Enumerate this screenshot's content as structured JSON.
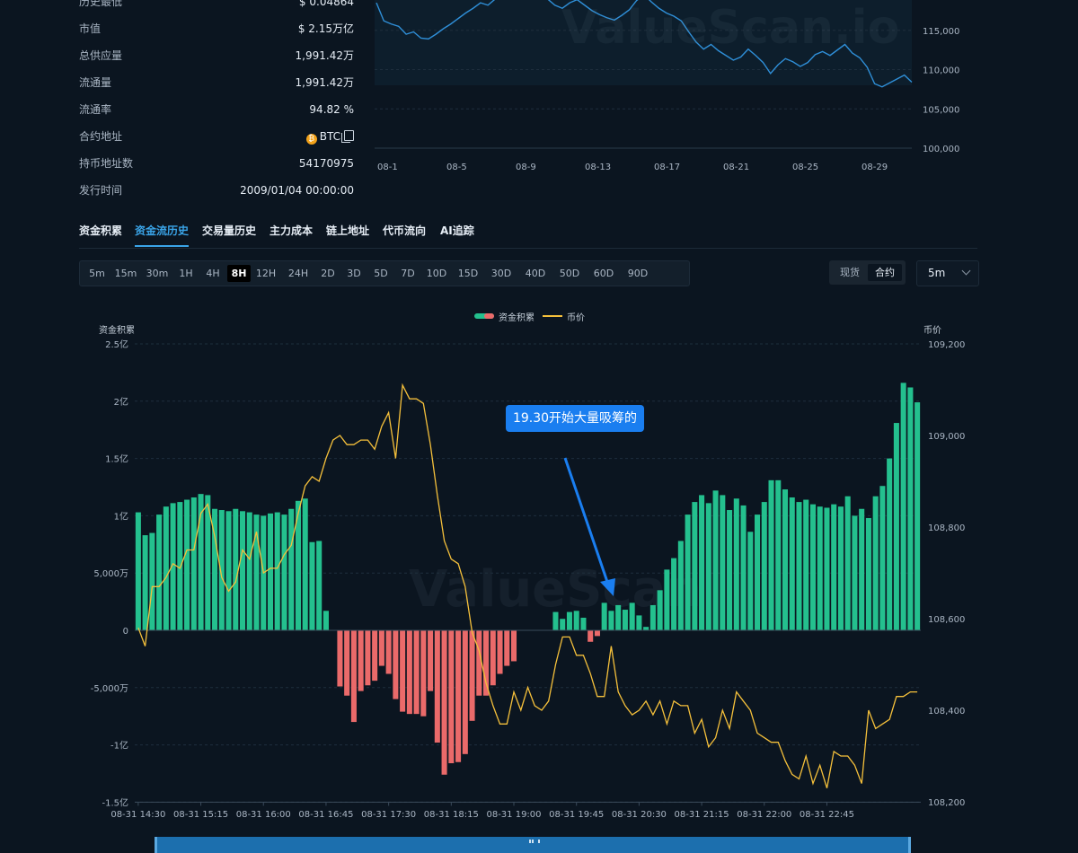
{
  "info_rows": [
    {
      "label": "历史最低",
      "value": "$ 0.04864"
    },
    {
      "label": "市值",
      "value": "$ 2.15万亿"
    },
    {
      "label": "总供应量",
      "value": "1,991.42万"
    },
    {
      "label": "流通量",
      "value": "1,991.42万"
    },
    {
      "label": "流通率",
      "value": "94.82 %"
    },
    {
      "label": "合约地址",
      "value": "BTC"
    },
    {
      "label": "持币地址数",
      "value": "54170975"
    },
    {
      "label": "发行时间",
      "value": "2009/01/04 00:00:00"
    }
  ],
  "watermark": "ValueScan.io",
  "watermark_main": "ValueScan",
  "tabs": [
    "资金积累",
    "资金流历史",
    "交易量历史",
    "主力成本",
    "链上地址",
    "代币流向",
    "AI追踪"
  ],
  "active_tab": "资金流历史",
  "intervals": [
    "5m",
    "15m",
    "30m",
    "1H",
    "4H",
    "8H",
    "12H",
    "24H",
    "2D",
    "3D",
    "5D",
    "7D",
    "10D",
    "15D",
    "30D",
    "40D",
    "50D",
    "60D",
    "90D"
  ],
  "active_interval": "8H",
  "market_toggle": [
    "现货",
    "合约"
  ],
  "active_market": "合约",
  "period_select": "5m",
  "annotation": "19.30开始大量吸筹的",
  "colors": {
    "up": "#24c08e",
    "down": "#ea6a6a",
    "price": "#f5c03b",
    "top_line": "#2f8fd8"
  },
  "top_chart": {
    "type": "line",
    "x_ticks": [
      "08-1",
      "08-5",
      "08-9",
      "08-13",
      "08-17",
      "08-21",
      "08-25",
      "08-29"
    ],
    "y_ticks": [
      115000,
      110000,
      105000,
      100000
    ],
    "y_tick_labels": [
      "115,000",
      "110,000",
      "105,000",
      "100,000"
    ],
    "ylim": [
      100000,
      120000
    ],
    "values": [
      118500,
      116200,
      115800,
      115500,
      114500,
      114800,
      114000,
      113900,
      114500,
      115200,
      115800,
      116500,
      117200,
      117800,
      118500,
      118200,
      119000,
      119800,
      120500,
      119500,
      121000,
      120800,
      119500,
      119000,
      118200,
      117800,
      118500,
      118900,
      118200,
      117500,
      117000,
      116600,
      116300,
      116900,
      117600,
      118800,
      119500,
      118600,
      117800,
      117200,
      116800,
      116200,
      114800,
      113500,
      112600,
      113200,
      112400,
      111800,
      111200,
      111600,
      112600,
      111800,
      110900,
      109500,
      110600,
      111400,
      111000,
      110400,
      110900,
      111900,
      112300,
      111800,
      112500,
      113200,
      112100,
      111500,
      110300,
      108200,
      107800,
      108300,
      108800,
      109300,
      108400
    ]
  },
  "chart_data": {
    "type": "bar",
    "legend": [
      "资金积累",
      "币价"
    ],
    "left_axis_label": "资金积累",
    "right_axis_label": "币价",
    "left_ticks": [
      250000000,
      200000000,
      150000000,
      100000000,
      50000000,
      0,
      -50000000,
      -100000000,
      -150000000
    ],
    "left_tick_labels": [
      "2.5亿",
      "2亿",
      "1.5亿",
      "1亿",
      "5,000万",
      "0",
      "-5,000万",
      "-1亿",
      "-1.5亿"
    ],
    "left_ylim": [
      -150000000,
      250000000
    ],
    "right_ticks": [
      109200,
      109000,
      108800,
      108600,
      108400,
      108200
    ],
    "right_tick_labels": [
      "109,200",
      "109,000",
      "108,800",
      "108,600",
      "108,400",
      "108,200"
    ],
    "right_ylim": [
      108200,
      109200
    ],
    "x_tick_labels": [
      "08-31 14:30",
      "08-31 15:15",
      "08-31 16:00",
      "08-31 16:45",
      "08-31 17:30",
      "08-31 18:15",
      "08-31 19:00",
      "08-31 19:45",
      "08-31 20:30",
      "08-31 21:15",
      "08-31 22:00",
      "08-31 22:45"
    ],
    "x_tick_index": [
      0,
      9,
      18,
      27,
      36,
      45,
      54,
      63,
      72,
      81,
      90,
      99
    ],
    "values": [
      103,
      83,
      85,
      101,
      108,
      111,
      112,
      114,
      116,
      119,
      118,
      106,
      105,
      104,
      106,
      104,
      103,
      101,
      100,
      102,
      103,
      101,
      106,
      113,
      115,
      77,
      78,
      17,
      0,
      -49,
      -57,
      -80,
      -53,
      -48,
      -44,
      -31,
      -38,
      -60,
      -71,
      -73,
      -73,
      -75,
      -53,
      -98,
      -126,
      -116,
      -115,
      -108,
      -79,
      -57,
      -57,
      -48,
      -38,
      -31,
      -27,
      0,
      0,
      0,
      0,
      0,
      16,
      10,
      16,
      17,
      11,
      -10,
      -5,
      24,
      17,
      22,
      18,
      24,
      13,
      3,
      22,
      35,
      53,
      63,
      78,
      101,
      112,
      118,
      111,
      122,
      118,
      105,
      115,
      109,
      86,
      101,
      112,
      131,
      131,
      123,
      116,
      112,
      114,
      110,
      108,
      107,
      110,
      108,
      117,
      100,
      106,
      98,
      117,
      126,
      150,
      181,
      216,
      212,
      199
    ],
    "price": [
      108580,
      108540,
      108670,
      108670,
      108690,
      108720,
      108710,
      108750,
      108750,
      108830,
      108850,
      108780,
      108690,
      108660,
      108680,
      108750,
      108730,
      108790,
      108700,
      108710,
      108710,
      108740,
      108760,
      108830,
      108890,
      108910,
      108900,
      108950,
      108990,
      109000,
      108980,
      108980,
      108990,
      108990,
      108970,
      109020,
      109050,
      108950,
      109110,
      109080,
      109080,
      109070,
      108980,
      108870,
      108770,
      108730,
      108720,
      108670,
      108570,
      108530,
      108460,
      108410,
      108370,
      108370,
      108440,
      108400,
      108450,
      108410,
      108400,
      108420,
      108500,
      108560,
      108560,
      108520,
      108520,
      108480,
      108430,
      108430,
      108540,
      108440,
      108410,
      108390,
      108400,
      108420,
      108390,
      108420,
      108370,
      108420,
      108410,
      108410,
      108350,
      108380,
      108320,
      108340,
      108400,
      108360,
      108440,
      108420,
      108400,
      108350,
      108340,
      108330,
      108330,
      108290,
      108260,
      108250,
      108300,
      108240,
      108280,
      108230,
      108310,
      108300,
      108300,
      108280,
      108240,
      108400,
      108360,
      108370,
      108380,
      108430,
      108430,
      108440,
      108440
    ]
  }
}
